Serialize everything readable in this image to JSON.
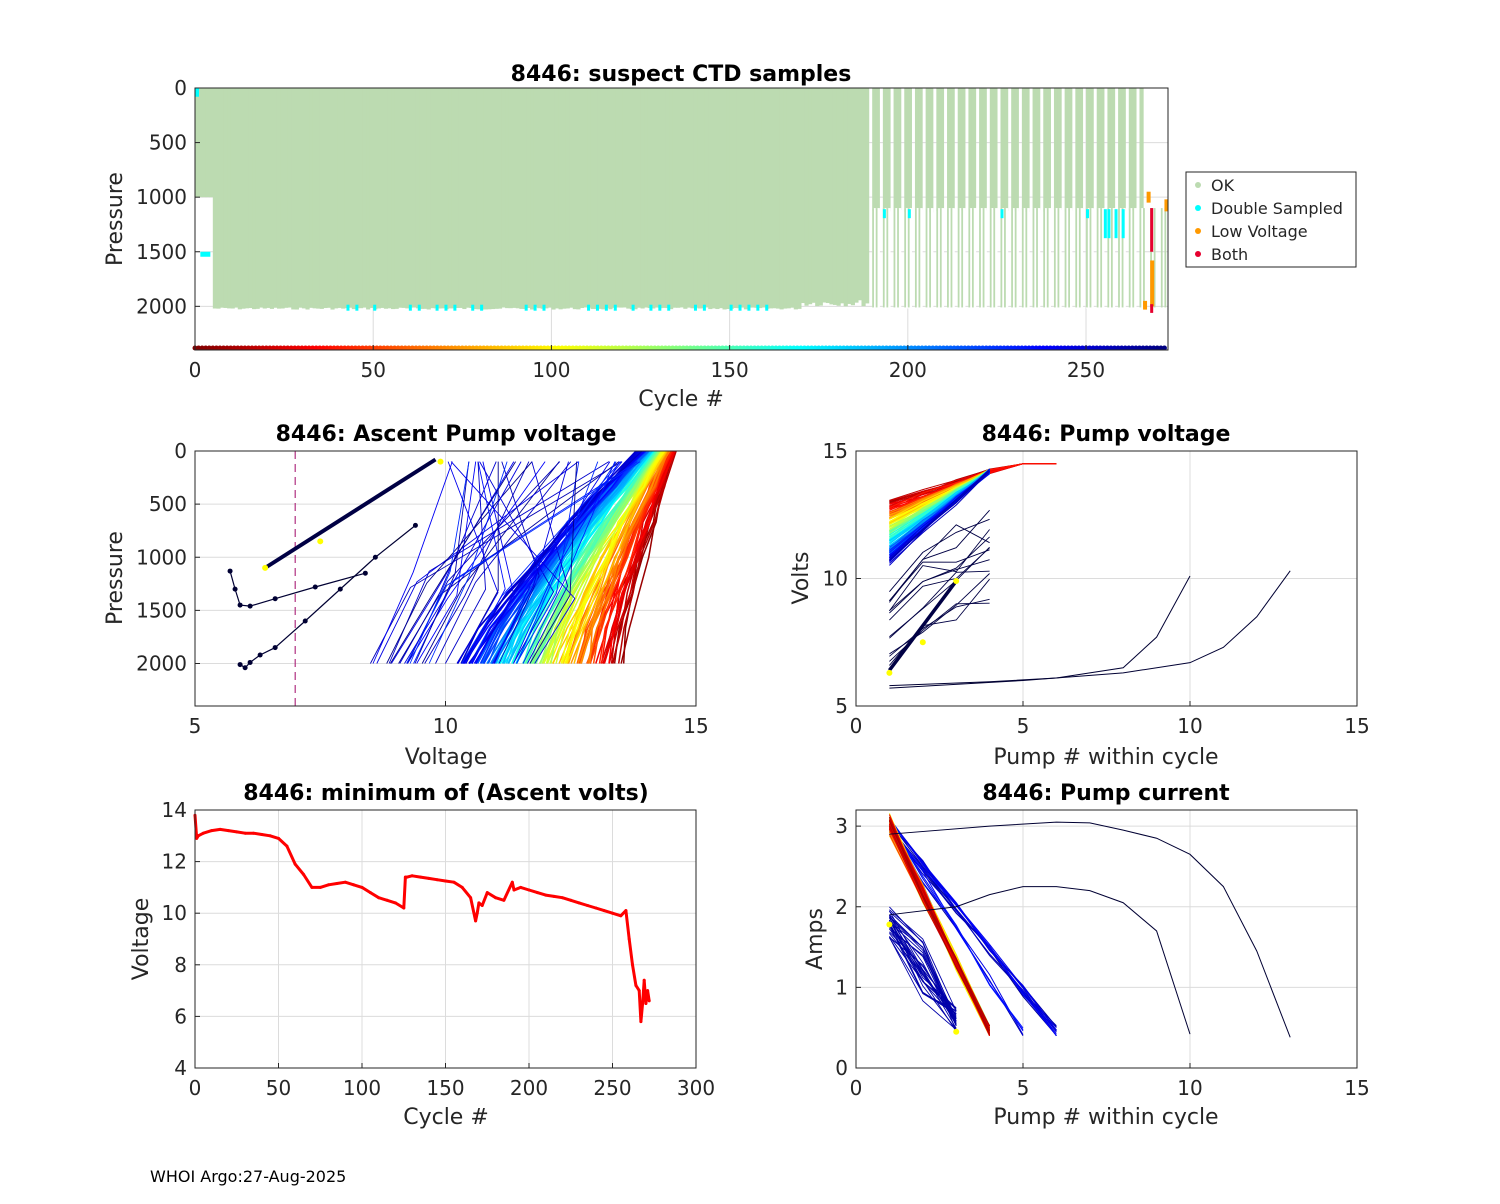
{
  "footer": "WHOI Argo:27-Aug-2025",
  "colors": {
    "ok": "#bcdbb1",
    "double": "#00ffff",
    "lowv": "#ff9900",
    "both": "#e6002e",
    "min_line": "#ff0000",
    "threshold": "#b03080"
  },
  "chart_data": [
    {
      "id": "ctd",
      "type": "area",
      "title": "8446: suspect CTD samples",
      "xlabel": "Cycle #",
      "ylabel": "Pressure",
      "xlim": [
        0,
        273
      ],
      "ylim": [
        0,
        2400
      ],
      "y_reversed": true,
      "xticks": [
        "0",
        "50",
        "100",
        "150",
        "200",
        "250"
      ],
      "yticks": [
        "0",
        "500",
        "1000",
        "1500",
        "2000"
      ],
      "legend": [
        "OK",
        "Double Sampled",
        "Low Voltage",
        "Both"
      ],
      "legend_position": "outside-right",
      "profile_depths": {
        "cycles_5_to_170": 2020,
        "cycles_170_to_188": 1950,
        "cycles_190_to_272": 1110
      }
    },
    {
      "id": "ascent",
      "type": "line",
      "title": "8446: Ascent Pump voltage",
      "xlabel": "Voltage",
      "ylabel": "Pressure",
      "xlim": [
        5,
        15
      ],
      "ylim": [
        0,
        2400
      ],
      "y_reversed": true,
      "xticks": [
        "5",
        "10",
        "15"
      ],
      "yticks": [
        "0",
        "500",
        "1000",
        "1500",
        "2000"
      ],
      "threshold_voltage": 7
    },
    {
      "id": "pumpv",
      "type": "line",
      "title": "8446: Pump voltage",
      "xlabel": "Pump # within cycle",
      "ylabel": "Volts",
      "xlim": [
        0,
        15
      ],
      "ylim": [
        5,
        15
      ],
      "xticks": [
        "0",
        "5",
        "10",
        "15"
      ],
      "yticks": [
        "5",
        "10",
        "15"
      ]
    },
    {
      "id": "minv",
      "type": "line",
      "title": "8446: minimum of (Ascent volts)",
      "xlabel": "Cycle #",
      "ylabel": "Voltage",
      "xlim": [
        0,
        300
      ],
      "ylim": [
        4,
        14
      ],
      "xticks": [
        "0",
        "50",
        "100",
        "150",
        "200",
        "250",
        "300"
      ],
      "yticks": [
        "4",
        "6",
        "8",
        "10",
        "12",
        "14"
      ],
      "series": [
        {
          "name": "minimum ascent voltage",
          "x": [
            0,
            1,
            2,
            5,
            10,
            15,
            20,
            25,
            30,
            35,
            40,
            45,
            50,
            55,
            60,
            65,
            70,
            75,
            80,
            85,
            90,
            95,
            100,
            105,
            110,
            115,
            120,
            125,
            126,
            127,
            130,
            135,
            140,
            145,
            150,
            155,
            160,
            165,
            168,
            169,
            170,
            172,
            175,
            180,
            185,
            190,
            191,
            195,
            200,
            205,
            210,
            215,
            220,
            225,
            230,
            235,
            240,
            245,
            250,
            255,
            258,
            260,
            262,
            264,
            266,
            267,
            268,
            269,
            270,
            271,
            272
          ],
          "y": [
            13.8,
            12.9,
            13.0,
            13.1,
            13.2,
            13.25,
            13.2,
            13.15,
            13.1,
            13.1,
            13.05,
            13.0,
            12.9,
            12.6,
            11.9,
            11.5,
            11.0,
            11.0,
            11.1,
            11.15,
            11.2,
            11.1,
            11.0,
            10.8,
            10.6,
            10.5,
            10.4,
            10.2,
            11.4,
            11.4,
            11.45,
            11.4,
            11.35,
            11.3,
            11.25,
            11.2,
            11.0,
            10.6,
            9.7,
            10.0,
            10.4,
            10.3,
            10.8,
            10.6,
            10.5,
            11.2,
            10.9,
            11.0,
            10.9,
            10.8,
            10.7,
            10.65,
            10.6,
            10.5,
            10.4,
            10.3,
            10.2,
            10.1,
            10.0,
            9.9,
            10.1,
            9.0,
            8.0,
            7.2,
            7.0,
            5.8,
            6.5,
            7.4,
            6.5,
            7.0,
            6.6
          ]
        }
      ]
    },
    {
      "id": "current",
      "type": "line",
      "title": "8446: Pump current",
      "xlabel": "Pump # within cycle",
      "ylabel": "Amps",
      "xlim": [
        0,
        15
      ],
      "ylim": [
        0,
        3.2
      ],
      "xticks": [
        "0",
        "5",
        "10",
        "15"
      ],
      "yticks": [
        "0",
        "1",
        "2",
        "3"
      ]
    }
  ]
}
